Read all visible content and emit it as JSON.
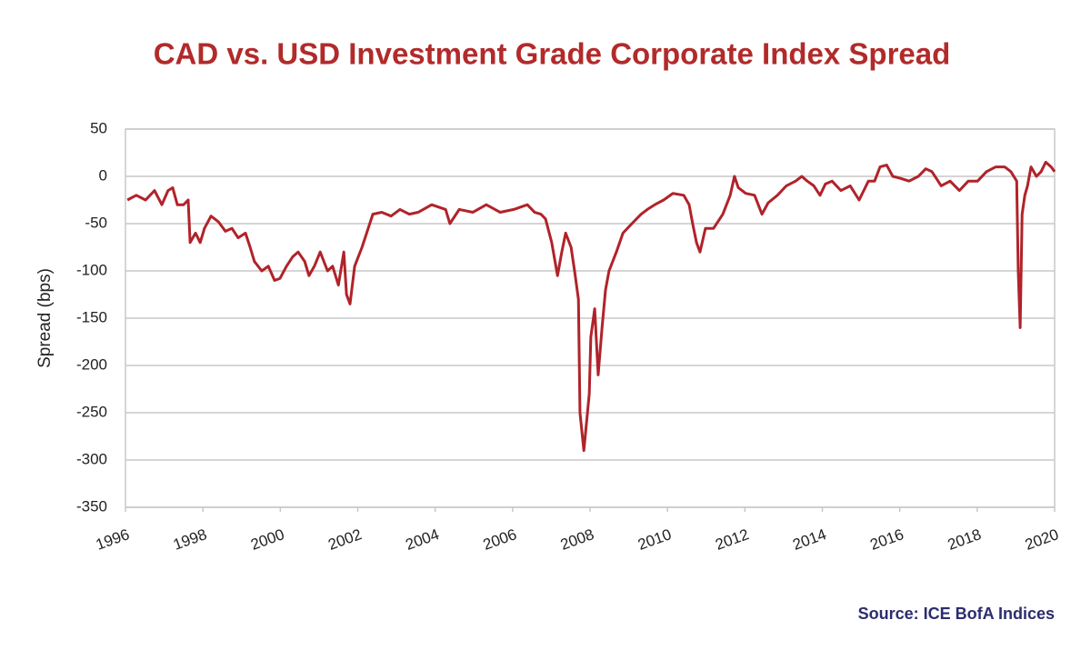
{
  "chart_data": {
    "type": "line",
    "title": "CAD vs. USD Investment Grade Corporate Index Spread",
    "y_label": "Spread (bps)",
    "source": "Source: ICE BofA Indices",
    "color": "#b0232a",
    "grid": true,
    "xlim": [
      1996,
      2020
    ],
    "xticks": [
      1996,
      1998,
      2000,
      2002,
      2004,
      2006,
      2008,
      2010,
      2012,
      2014,
      2016,
      2018,
      2020
    ],
    "ylim": [
      -350,
      50
    ],
    "yticks": [
      50,
      0,
      -50,
      -100,
      -150,
      -200,
      -250,
      -300,
      -350
    ],
    "x": [
      1996.05,
      1996.28,
      1996.52,
      1996.75,
      1996.94,
      1997.1,
      1997.22,
      1997.34,
      1997.5,
      1997.62,
      1997.67,
      1997.81,
      1997.93,
      1998.04,
      1998.21,
      1998.4,
      1998.58,
      1998.75,
      1998.91,
      1999.1,
      1999.22,
      1999.33,
      1999.52,
      1999.69,
      1999.85,
      1999.99,
      2000.16,
      2000.32,
      2000.46,
      2000.63,
      2000.74,
      2000.88,
      2001.03,
      2001.22,
      2001.35,
      2001.5,
      2001.64,
      2001.71,
      2001.8,
      2001.92,
      2002.11,
      2002.27,
      2002.39,
      2002.62,
      2002.86,
      2003.09,
      2003.33,
      2003.56,
      2003.91,
      2004.27,
      2004.38,
      2004.62,
      2004.97,
      2005.32,
      2005.68,
      2006.03,
      2006.38,
      2006.57,
      2006.73,
      2006.85,
      2007.01,
      2007.16,
      2007.27,
      2007.37,
      2007.51,
      2007.6,
      2007.7,
      2007.74,
      2007.79,
      2007.84,
      2007.91,
      2007.98,
      2008.02,
      2008.12,
      2008.21,
      2008.31,
      2008.4,
      2008.49,
      2008.68,
      2008.85,
      2009.08,
      2009.32,
      2009.48,
      2009.67,
      2009.9,
      2010.14,
      2010.42,
      2010.56,
      2010.65,
      2010.75,
      2010.84,
      2010.98,
      2011.19,
      2011.43,
      2011.62,
      2011.73,
      2011.83,
      2012.02,
      2012.25,
      2012.44,
      2012.6,
      2012.84,
      2013.07,
      2013.31,
      2013.47,
      2013.61,
      2013.78,
      2013.94,
      2014.08,
      2014.25,
      2014.48,
      2014.72,
      2014.95,
      2015.07,
      2015.19,
      2015.35,
      2015.49,
      2015.66,
      2015.82,
      2016.01,
      2016.24,
      2016.48,
      2016.67,
      2016.83,
      2017.07,
      2017.3,
      2017.54,
      2017.77,
      2018.01,
      2018.24,
      2018.48,
      2018.71,
      2018.87,
      2019.02,
      2019.06,
      2019.11,
      2019.16,
      2019.23,
      2019.3,
      2019.39,
      2019.53,
      2019.65,
      2019.77,
      2019.91,
      2020.0
    ],
    "values": [
      -25,
      -20,
      -25,
      -15,
      -30,
      -15,
      -12,
      -30,
      -30,
      -25,
      -70,
      -60,
      -70,
      -55,
      -42,
      -48,
      -58,
      -55,
      -65,
      -60,
      -75,
      -90,
      -100,
      -95,
      -110,
      -108,
      -95,
      -85,
      -80,
      -90,
      -105,
      -95,
      -80,
      -100,
      -95,
      -115,
      -80,
      -125,
      -135,
      -95,
      -75,
      -55,
      -40,
      -38,
      -42,
      -35,
      -40,
      -38,
      -30,
      -35,
      -50,
      -35,
      -38,
      -30,
      -38,
      -35,
      -30,
      -38,
      -40,
      -45,
      -70,
      -105,
      -80,
      -60,
      -75,
      -100,
      -130,
      -250,
      -270,
      -290,
      -260,
      -230,
      -170,
      -140,
      -210,
      -160,
      -120,
      -100,
      -80,
      -60,
      -50,
      -40,
      -35,
      -30,
      -25,
      -18,
      -20,
      -30,
      -50,
      -70,
      -80,
      -55,
      -55,
      -40,
      -20,
      0,
      -12,
      -18,
      -20,
      -40,
      -28,
      -20,
      -10,
      -5,
      0,
      -5,
      -10,
      -20,
      -8,
      -5,
      -15,
      -10,
      -25,
      -15,
      -5,
      -5,
      10,
      12,
      0,
      -2,
      -5,
      0,
      8,
      5,
      -10,
      -5,
      -15,
      -5,
      -5,
      5,
      10,
      10,
      5,
      -5,
      -100,
      -160,
      -40,
      -20,
      -10,
      10,
      0,
      5,
      15,
      10,
      5
    ]
  }
}
